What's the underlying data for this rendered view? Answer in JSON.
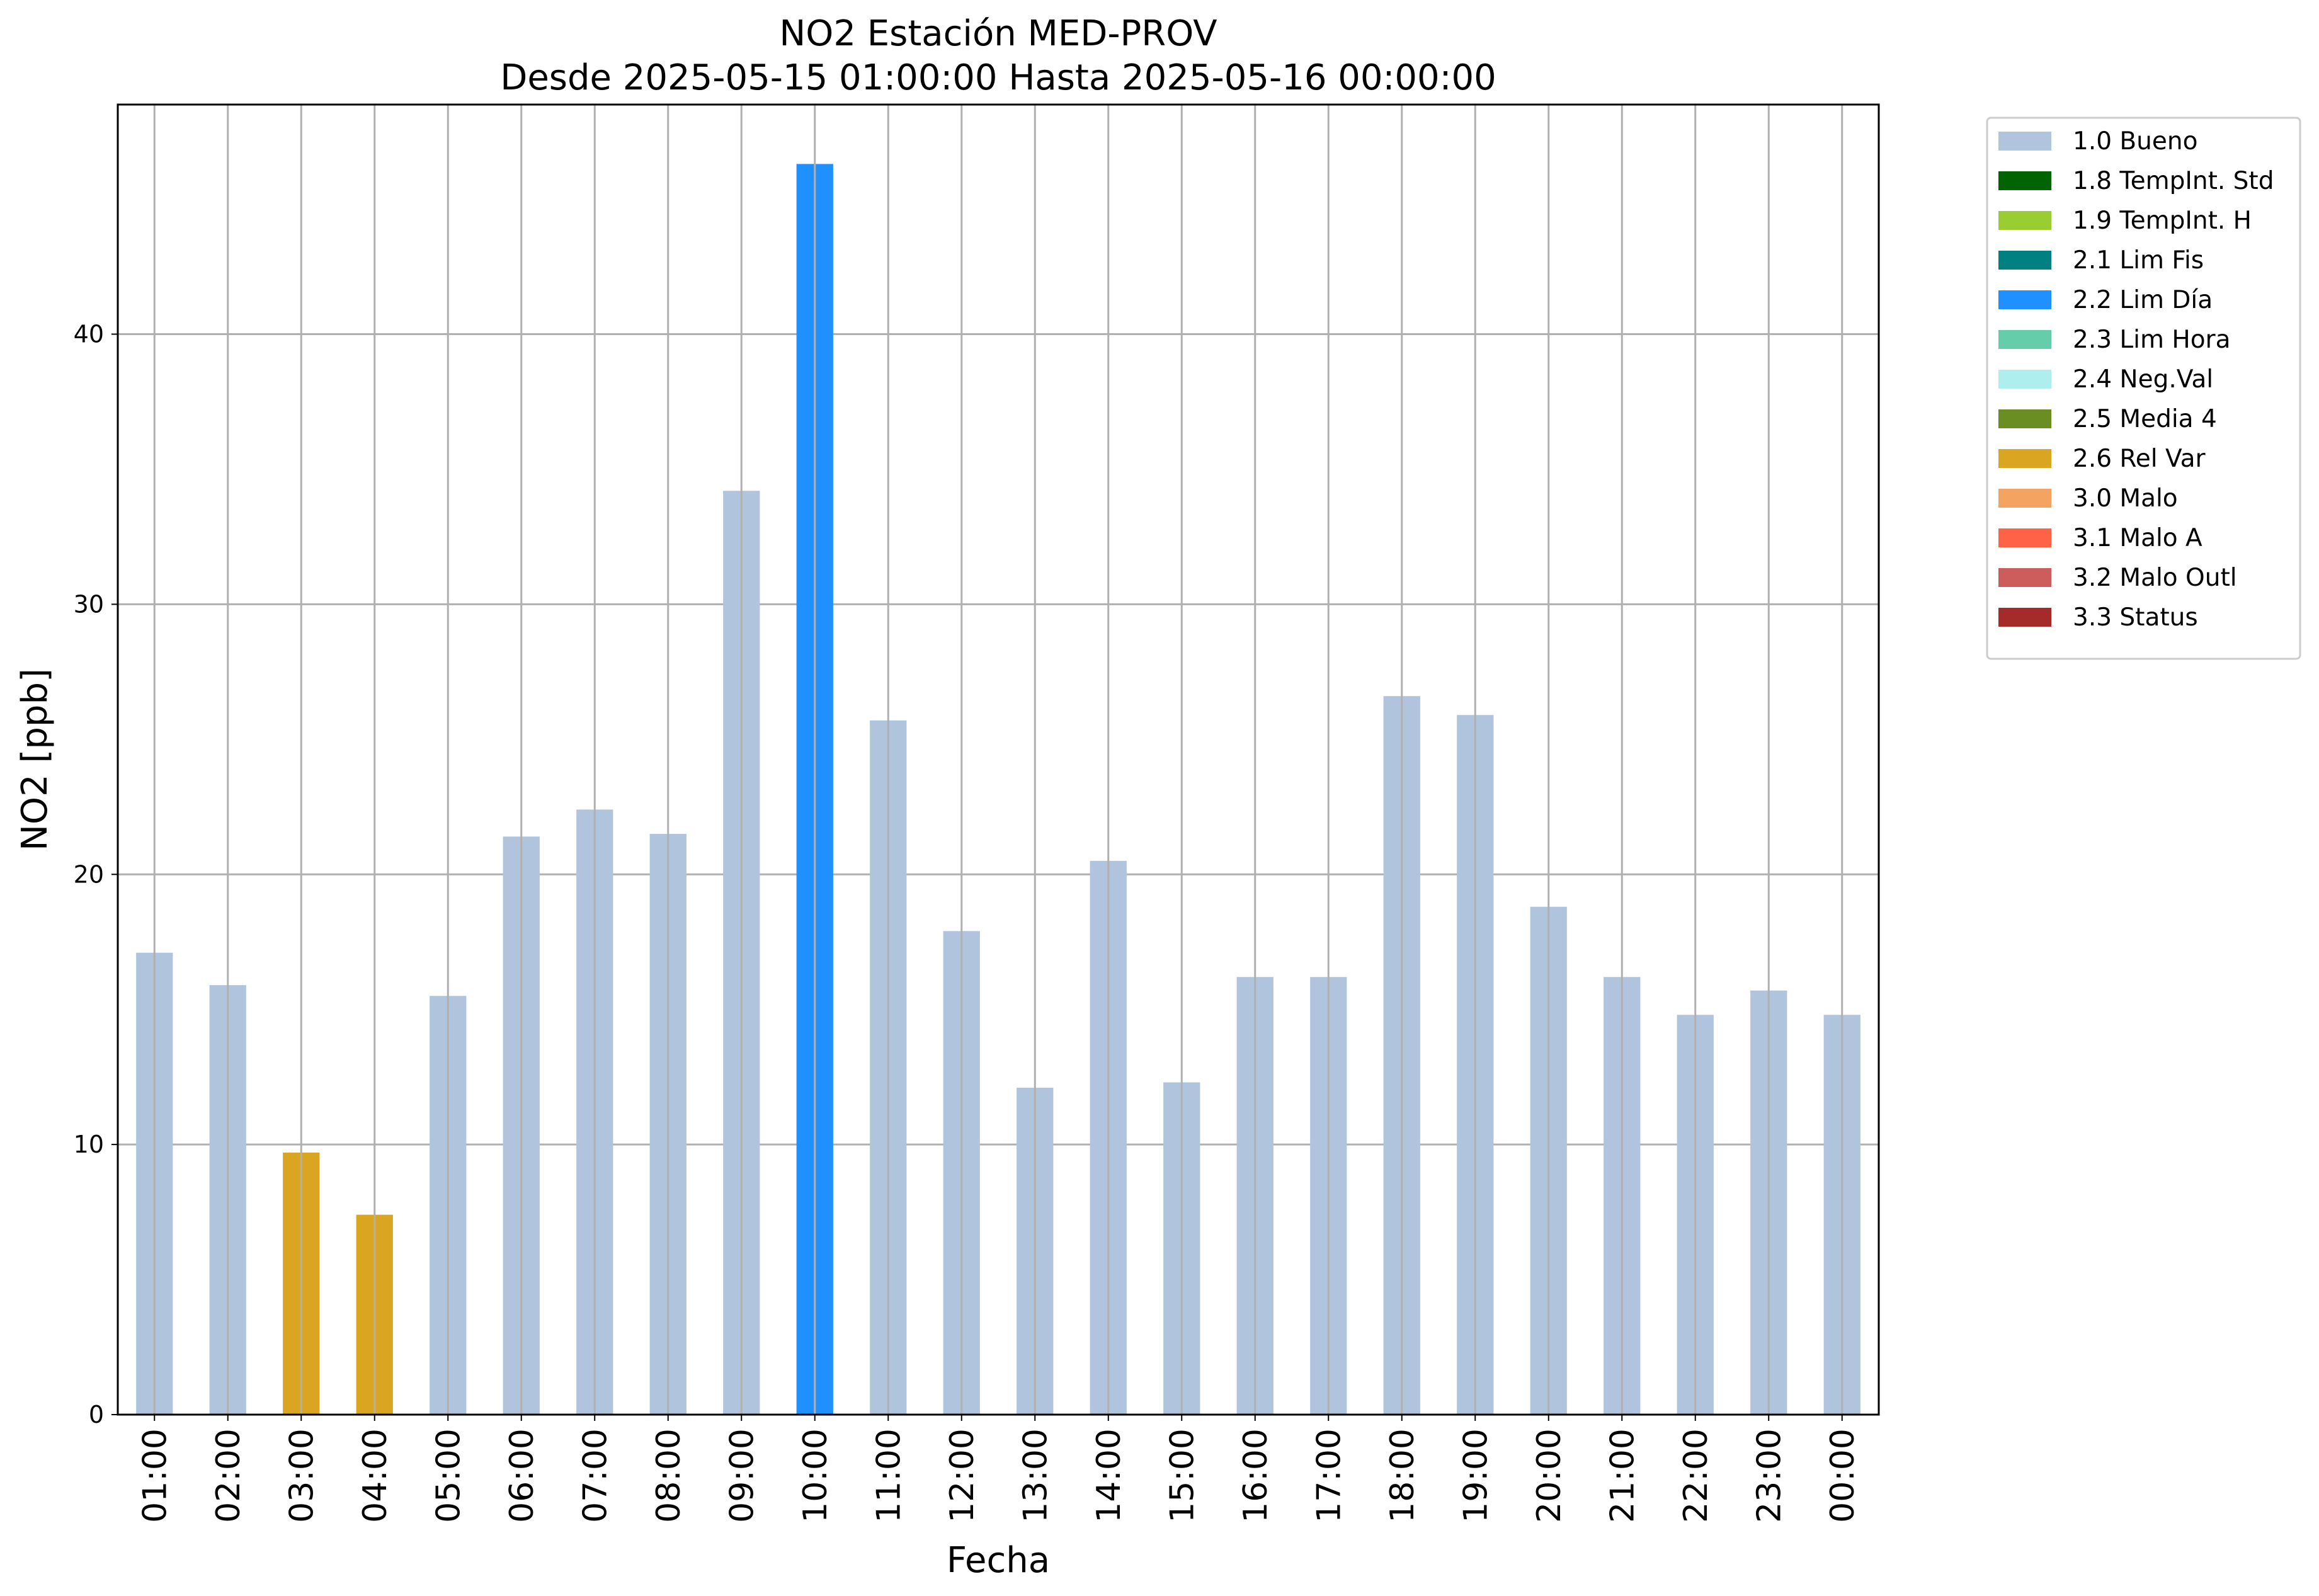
{
  "chart_data": {
    "type": "bar",
    "title": "NO2 Estación MED-PROV",
    "subtitle": "Desde 2025-05-15 01:00:00 Hasta 2025-05-16 00:00:00",
    "xlabel": "Fecha",
    "ylabel": "NO2 [ppb]",
    "ylim": [
      0,
      48.5
    ],
    "yticks": [
      0,
      10,
      20,
      30,
      40
    ],
    "grid": true,
    "legend_position": "outside-top-right",
    "categories": [
      "01:00",
      "02:00",
      "03:00",
      "04:00",
      "05:00",
      "06:00",
      "07:00",
      "08:00",
      "09:00",
      "10:00",
      "11:00",
      "12:00",
      "13:00",
      "14:00",
      "15:00",
      "16:00",
      "17:00",
      "18:00",
      "19:00",
      "20:00",
      "21:00",
      "22:00",
      "23:00",
      "00:00"
    ],
    "values": [
      17.1,
      15.9,
      9.7,
      7.4,
      15.5,
      21.4,
      22.4,
      21.5,
      34.2,
      46.3,
      25.7,
      17.9,
      12.1,
      20.5,
      12.3,
      16.2,
      16.2,
      26.6,
      25.9,
      18.8,
      16.2,
      14.8,
      15.7,
      14.8
    ],
    "bar_flags": [
      "1.0 Bueno",
      "1.0 Bueno",
      "2.6 Rel Var",
      "2.6 Rel Var",
      "1.0 Bueno",
      "1.0 Bueno",
      "1.0 Bueno",
      "1.0 Bueno",
      "1.0 Bueno",
      "2.2 Lim Día",
      "1.0 Bueno",
      "1.0 Bueno",
      "1.0 Bueno",
      "1.0 Bueno",
      "1.0 Bueno",
      "1.0 Bueno",
      "1.0 Bueno",
      "1.0 Bueno",
      "1.0 Bueno",
      "1.0 Bueno",
      "1.0 Bueno",
      "1.0 Bueno",
      "1.0 Bueno",
      "1.0 Bueno"
    ],
    "legend": [
      {
        "label": "1.0 Bueno",
        "color": "#b0c4de"
      },
      {
        "label": "1.8 TempInt. Std",
        "color": "#006400"
      },
      {
        "label": "1.9 TempInt. H",
        "color": "#9acd32"
      },
      {
        "label": "2.1 Lim Fis",
        "color": "#008080"
      },
      {
        "label": "2.2 Lim Día",
        "color": "#1e90ff"
      },
      {
        "label": "2.3 Lim Hora",
        "color": "#66cdaa"
      },
      {
        "label": "2.4 Neg.Val",
        "color": "#afeeee"
      },
      {
        "label": "2.5 Media 4",
        "color": "#6b8e23"
      },
      {
        "label": "2.6 Rel Var",
        "color": "#daa520"
      },
      {
        "label": "3.0 Malo",
        "color": "#f4a460"
      },
      {
        "label": "3.1 Malo A",
        "color": "#ff6347"
      },
      {
        "label": "3.2 Malo Outl",
        "color": "#cd5c5c"
      },
      {
        "label": "3.3 Status",
        "color": "#a52a2a"
      }
    ]
  }
}
